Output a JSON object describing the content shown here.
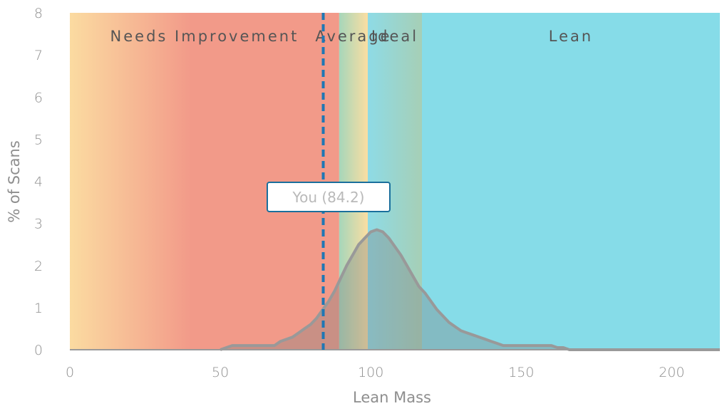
{
  "chart_data": {
    "type": "area",
    "xlabel": "Lean Mass",
    "ylabel": "% of Scans",
    "xlim": [
      0,
      216
    ],
    "ylim": [
      0,
      8
    ],
    "x_ticks": [
      "0",
      "50",
      "100",
      "150",
      "200"
    ],
    "y_ticks": [
      "0",
      "1",
      "2",
      "3",
      "4",
      "5",
      "6",
      "7",
      "8"
    ],
    "grid": false,
    "zones": [
      {
        "label": "Needs Improvement",
        "from": 0,
        "to": 89.5,
        "colors": [
          "#fbdba1",
          "#f29a89"
        ]
      },
      {
        "label": "Average",
        "from": 89.5,
        "to": 99,
        "colors": [
          "#a6d6ba",
          "#fbdea2"
        ]
      },
      {
        "label": "Ideal",
        "from": 99,
        "to": 117,
        "colors": [
          "#8edbe6",
          "#a6cfb6"
        ]
      },
      {
        "label": "Lean",
        "from": 117,
        "to": 216,
        "colors": [
          "#86dce8",
          "#86dce8"
        ]
      }
    ],
    "marker": {
      "label": "You (84.2)",
      "x": 84.2
    },
    "series": [
      {
        "x": [
          50,
          52,
          54,
          56,
          58,
          60,
          62,
          64,
          66,
          68,
          70,
          72,
          74,
          76,
          78,
          80,
          82,
          84,
          86,
          88,
          90,
          92,
          94,
          96,
          98,
          100,
          102,
          104,
          106,
          108,
          110,
          112,
          114,
          116,
          118,
          120,
          122,
          124,
          126,
          128,
          130,
          132,
          134,
          136,
          138,
          140,
          142,
          144,
          146,
          148,
          150,
          152,
          154,
          156,
          158,
          160,
          162,
          164,
          166,
          168,
          216
        ],
        "values": [
          0,
          0.05,
          0.1,
          0.1,
          0.1,
          0.1,
          0.1,
          0.1,
          0.1,
          0.1,
          0.2,
          0.25,
          0.3,
          0.4,
          0.5,
          0.6,
          0.75,
          0.95,
          1.15,
          1.4,
          1.7,
          2.0,
          2.25,
          2.5,
          2.65,
          2.8,
          2.85,
          2.8,
          2.65,
          2.45,
          2.25,
          2.0,
          1.75,
          1.5,
          1.35,
          1.15,
          0.95,
          0.8,
          0.65,
          0.55,
          0.45,
          0.4,
          0.35,
          0.3,
          0.25,
          0.2,
          0.15,
          0.1,
          0.1,
          0.1,
          0.1,
          0.1,
          0.1,
          0.1,
          0.1,
          0.1,
          0.05,
          0.05,
          0,
          0,
          0
        ]
      }
    ]
  },
  "colors": {
    "curve": "#999999",
    "curve_fill": "#7d7d7d",
    "marker_line": "#1f77b4",
    "marker_box_border": "#1a6f9c",
    "axis": "#9a9a9a"
  }
}
